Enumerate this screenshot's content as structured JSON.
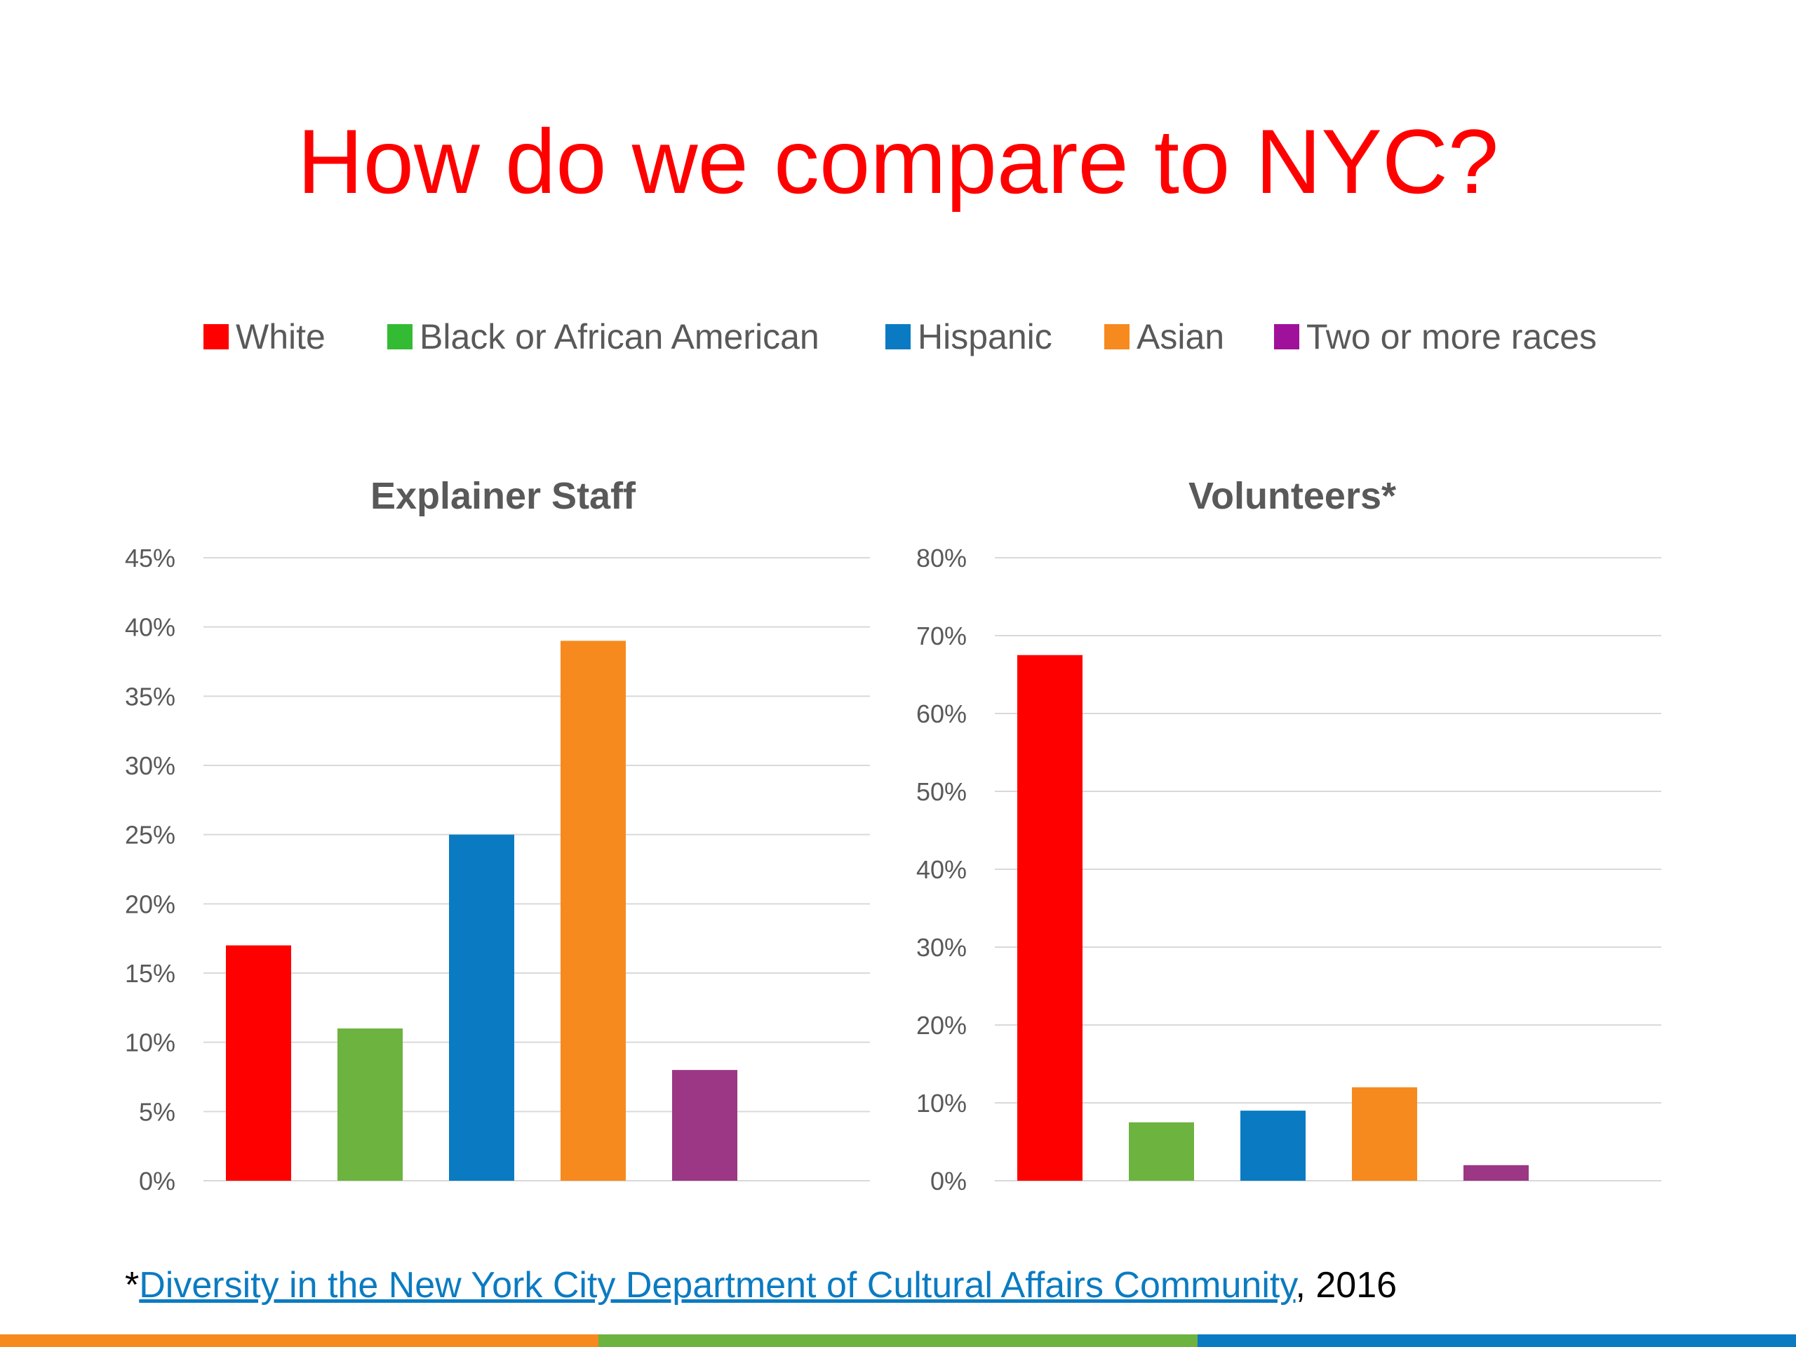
{
  "slide": {
    "title": "How do we compare to NYC?",
    "title_color": "#ff0000"
  },
  "legend": [
    {
      "label": "White",
      "color": "#ff0000"
    },
    {
      "label": "Black or African American",
      "color": "#33bb33"
    },
    {
      "label": "Hispanic",
      "color": "#0a7bc2"
    },
    {
      "label": "Asian",
      "color": "#f68a1f"
    },
    {
      "label": "Two or more races",
      "color": "#a0119b"
    }
  ],
  "chart_data": [
    {
      "type": "bar",
      "title": "Explainer Staff",
      "categories": [
        "White",
        "Black or African American",
        "Hispanic",
        "Asian",
        "Two or more races"
      ],
      "values": [
        17,
        11,
        25,
        39,
        8
      ],
      "colors": [
        "#ff0000",
        "#6db33f",
        "#0a7bc2",
        "#f68a1f",
        "#9b3784"
      ],
      "ylim": [
        0,
        45
      ],
      "yticks": [
        "0%",
        "5%",
        "10%",
        "15%",
        "20%",
        "25%",
        "30%",
        "35%",
        "40%",
        "45%"
      ],
      "ytick_values": [
        0,
        5,
        10,
        15,
        20,
        25,
        30,
        35,
        40,
        45
      ],
      "grid": true
    },
    {
      "type": "bar",
      "title": "Volunteers*",
      "categories": [
        "White",
        "Black or African American",
        "Hispanic",
        "Asian",
        "Two or more races"
      ],
      "values": [
        67.5,
        7.5,
        9,
        12,
        2
      ],
      "colors": [
        "#ff0000",
        "#6db33f",
        "#0a7bc2",
        "#f68a1f",
        "#9b3784"
      ],
      "ylim": [
        0,
        80
      ],
      "yticks": [
        "0%",
        "10%",
        "20%",
        "30%",
        "40%",
        "50%",
        "60%",
        "70%",
        "80%"
      ],
      "ytick_values": [
        0,
        10,
        20,
        30,
        40,
        50,
        60,
        70,
        80
      ],
      "grid": true
    }
  ],
  "footer": {
    "prefix": "*",
    "link_text": "Diversity in the New York City Department of Cultural Affairs Community",
    "suffix": ", 2016"
  },
  "bottom_bar": [
    "#f68a1f",
    "#6db33f",
    "#0a7bc2"
  ]
}
